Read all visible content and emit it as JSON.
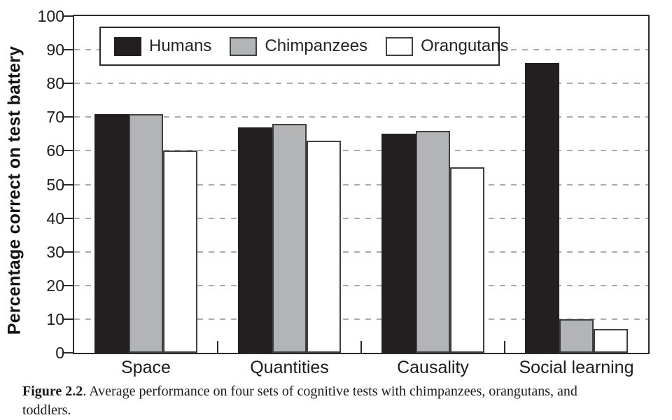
{
  "figure_caption": {
    "label": "Figure 2.2",
    "line1": ". Average performance on four sets of cognitive tests with chimpanzees, orangutans, and",
    "line2": "toddlers."
  },
  "chart_data": {
    "type": "bar",
    "title": "",
    "xlabel": "",
    "ylabel": "Percentage correct on test battery",
    "categories": [
      "Space",
      "Quantities",
      "Causality",
      "Social learning"
    ],
    "series": [
      {
        "name": "Humans",
        "fill": "#231f20",
        "border": "#231f20",
        "values": [
          71,
          67,
          65,
          86
        ]
      },
      {
        "name": "Chimpanzees",
        "fill": "#b2b4b6",
        "border": "#3f4042",
        "values": [
          71,
          68,
          66,
          10
        ]
      },
      {
        "name": "Orangutans",
        "fill": "#ffffff",
        "border": "#3f4042",
        "values": [
          60,
          63,
          55,
          7
        ]
      }
    ],
    "ylim": [
      0,
      100
    ],
    "yticks": [
      0,
      10,
      20,
      30,
      40,
      50,
      60,
      70,
      80,
      90,
      100
    ],
    "grid": {
      "style": "dashed",
      "color": "#a9abad",
      "levels": [
        10,
        20,
        30,
        40,
        50,
        60,
        70,
        80,
        90
      ]
    },
    "legend": {
      "position": "top-inside"
    },
    "axis_color": "#2b2b2d"
  }
}
